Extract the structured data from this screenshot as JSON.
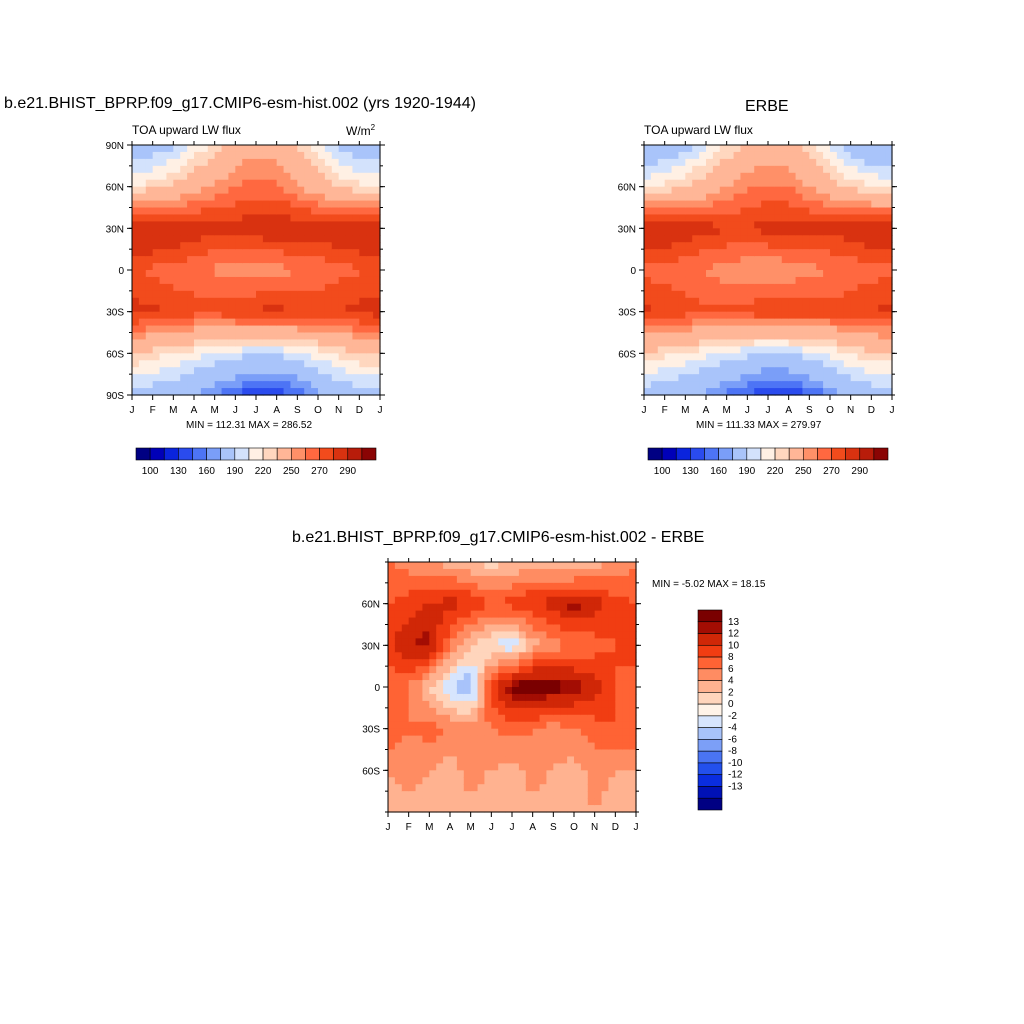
{
  "panels": [
    {
      "title": "b.e21.BHIST_BPRP.f09_g17.CMIP6-esm-hist.002 (yrs 1920-1944)",
      "left_label": "TOA upward LW flux",
      "units_base": "W/m",
      "units_sup": "2",
      "minmax": "MIN = 112.31 MAX = 286.52",
      "lat_ticks": [
        "90N",
        "60N",
        "30N",
        "0",
        "30S",
        "60S",
        "90S"
      ],
      "month_ticks": [
        "J",
        "F",
        "M",
        "A",
        "M",
        "J",
        "J",
        "A",
        "S",
        "O",
        "N",
        "D",
        "J"
      ],
      "colorbar_labels": [
        "100",
        "130",
        "160",
        "190",
        "220",
        "250",
        "270",
        "290"
      ]
    },
    {
      "title": "ERBE",
      "left_label": "TOA upward LW flux",
      "minmax": "MIN = 111.33 MAX = 279.97",
      "lat_ticks": [
        "60N",
        "30N",
        "0",
        "30S",
        "60S"
      ],
      "month_ticks": [
        "J",
        "F",
        "M",
        "A",
        "M",
        "J",
        "J",
        "A",
        "S",
        "O",
        "N",
        "D",
        "J"
      ],
      "colorbar_labels": [
        "100",
        "130",
        "160",
        "190",
        "220",
        "250",
        "270",
        "290"
      ]
    },
    {
      "title": "b.e21.BHIST_BPRP.f09_g17.CMIP6-esm-hist.002 - ERBE",
      "minmax": "MIN =  -5.02 MAX =  18.15",
      "lat_ticks": [
        "60N",
        "30N",
        "0",
        "30S",
        "60S"
      ],
      "month_ticks": [
        "J",
        "F",
        "M",
        "A",
        "M",
        "J",
        "J",
        "A",
        "S",
        "O",
        "N",
        "D",
        "J"
      ],
      "colorbar_labels": [
        "13",
        "12",
        "10",
        "8",
        "6",
        "4",
        "2",
        "0",
        "-2",
        "-4",
        "-6",
        "-8",
        "-10",
        "-12",
        "-13"
      ]
    }
  ],
  "chart_data": [
    {
      "type": "heatmap",
      "title": "b.e21.BHIST_BPRP.f09_g17.CMIP6-esm-hist.002 (yrs 1920-1944)",
      "x": [
        "J",
        "F",
        "M",
        "A",
        "M",
        "J",
        "J",
        "A",
        "S",
        "O",
        "N",
        "D",
        "J"
      ],
      "y": [
        "90S",
        "60S",
        "30S",
        "0",
        "30N",
        "60N",
        "90N"
      ],
      "values": [
        [
          175,
          172,
          168,
          160,
          150,
          140,
          132,
          133,
          142,
          155,
          168,
          174,
          175
        ],
        [
          210,
          205,
          200,
          195,
          190,
          185,
          180,
          182,
          188,
          195,
          203,
          209,
          210
        ],
        [
          265,
          262,
          258,
          255,
          255,
          258,
          262,
          263,
          260,
          258,
          260,
          264,
          265
        ],
        [
          250,
          248,
          245,
          242,
          238,
          235,
          233,
          235,
          240,
          243,
          246,
          249,
          250
        ],
        [
          278,
          276,
          272,
          268,
          265,
          265,
          268,
          270,
          268,
          268,
          272,
          276,
          278
        ],
        [
          200,
          205,
          212,
          222,
          232,
          240,
          244,
          242,
          232,
          220,
          208,
          202,
          200
        ],
        [
          165,
          170,
          178,
          190,
          205,
          218,
          225,
          222,
          210,
          192,
          178,
          168,
          165
        ]
      ],
      "levels": [
        100,
        110,
        120,
        130,
        140,
        150,
        160,
        170,
        180,
        190,
        200,
        210,
        220,
        230,
        240,
        250,
        260,
        270,
        280,
        290
      ],
      "units": "W/m2",
      "min": 112.31,
      "max": 286.52
    },
    {
      "type": "heatmap",
      "title": "ERBE",
      "x": [
        "J",
        "F",
        "M",
        "A",
        "M",
        "J",
        "J",
        "A",
        "S",
        "O",
        "N",
        "D",
        "J"
      ],
      "y": [
        "90S",
        "60S",
        "30S",
        "0",
        "30N",
        "60N",
        "90N"
      ],
      "values": [
        [
          172,
          170,
          165,
          157,
          148,
          138,
          130,
          131,
          140,
          152,
          165,
          171,
          172
        ],
        [
          208,
          203,
          198,
          193,
          188,
          183,
          178,
          180,
          186,
          193,
          201,
          207,
          208
        ],
        [
          262,
          259,
          255,
          252,
          252,
          255,
          259,
          260,
          257,
          255,
          257,
          261,
          262
        ],
        [
          247,
          245,
          242,
          239,
          235,
          232,
          230,
          232,
          237,
          240,
          243,
          246,
          247
        ],
        [
          274,
          272,
          268,
          264,
          261,
          261,
          264,
          266,
          264,
          264,
          268,
          272,
          274
        ],
        [
          198,
          203,
          210,
          220,
          230,
          238,
          242,
          240,
          230,
          218,
          206,
          200,
          198
        ],
        [
          160,
          165,
          173,
          185,
          200,
          214,
          221,
          218,
          206,
          188,
          173,
          163,
          160
        ]
      ],
      "levels": [
        100,
        110,
        120,
        130,
        140,
        150,
        160,
        170,
        180,
        190,
        200,
        210,
        220,
        230,
        240,
        250,
        260,
        270,
        280,
        290
      ],
      "min": 111.33,
      "max": 279.97
    },
    {
      "type": "heatmap",
      "title": "b.e21.BHIST_BPRP.f09_g17.CMIP6-esm-hist.002 - ERBE",
      "x": [
        "J",
        "F",
        "M",
        "A",
        "M",
        "J",
        "J",
        "A",
        "S",
        "O",
        "N",
        "D",
        "J"
      ],
      "y": [
        "90S",
        "60S",
        "30S",
        "0",
        "30N",
        "60N",
        "90N"
      ],
      "values": [
        [
          2,
          3,
          3,
          4,
          3,
          2,
          4,
          3,
          2,
          3,
          4,
          3,
          2
        ],
        [
          4,
          5,
          4,
          3,
          5,
          4,
          3,
          5,
          4,
          3,
          5,
          4,
          4
        ],
        [
          8,
          6,
          7,
          6,
          5,
          6,
          7,
          6,
          5,
          6,
          7,
          8,
          8
        ],
        [
          7,
          6,
          2,
          -2,
          -4,
          9,
          14,
          15,
          14,
          13,
          11,
          8,
          7
        ],
        [
          9,
          12,
          13,
          6,
          2,
          0,
          -2,
          3,
          5,
          6,
          7,
          8,
          9
        ],
        [
          8,
          9,
          10,
          11,
          10,
          8,
          9,
          10,
          11,
          13,
          11,
          9,
          8
        ],
        [
          6,
          5,
          4,
          3,
          2,
          1,
          2,
          3,
          2,
          1,
          3,
          4,
          6
        ]
      ],
      "levels": [
        -13,
        -12,
        -10,
        -8,
        -6,
        -4,
        -2,
        0,
        2,
        4,
        6,
        8,
        10,
        12,
        13
      ],
      "min": -5.02,
      "max": 18.15
    }
  ],
  "colors": {
    "abs_palette": [
      "#000083",
      "#0000b8",
      "#0a24dd",
      "#2a4bee",
      "#4d74f5",
      "#7a9ef8",
      "#a9c4fa",
      "#d3e2fc",
      "#fff0e4",
      "#ffd7bf",
      "#ffb697",
      "#ff9068",
      "#ff6840",
      "#f24b1c",
      "#d93210",
      "#b81c0a",
      "#8a0404"
    ],
    "diff_palette": [
      "#000083",
      "#0011b5",
      "#0a2de0",
      "#2350ec",
      "#4a74f3",
      "#7c9ff7",
      "#a8c3fa",
      "#d7e5fd",
      "#fff3e8",
      "#ffd5bc",
      "#ffb290",
      "#ff8c62",
      "#ff6334",
      "#f13d12",
      "#d02707",
      "#a30d03",
      "#7a0000"
    ]
  }
}
